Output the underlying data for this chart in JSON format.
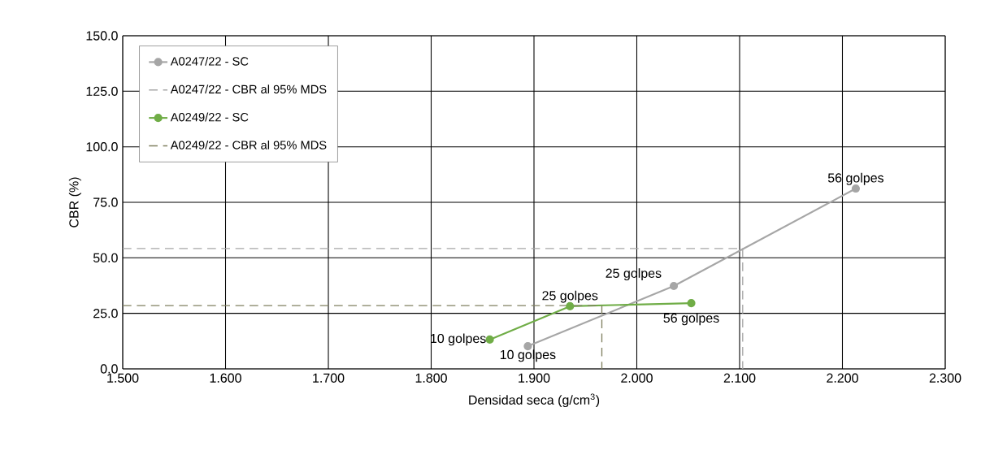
{
  "chart_data": {
    "type": "line",
    "xlabel": "Densidad seca (g/cm$^{3}$)",
    "ylabel": "CBR (%)",
    "xlim": [
      1.5,
      2.3
    ],
    "ylim": [
      0,
      150
    ],
    "xticks": [
      {
        "value": 1.5,
        "label": "1.500"
      },
      {
        "value": 1.6,
        "label": "1.600"
      },
      {
        "value": 1.7,
        "label": "1.700"
      },
      {
        "value": 1.8,
        "label": "1.800"
      },
      {
        "value": 1.9,
        "label": "1.900"
      },
      {
        "value": 2.0,
        "label": "2.000"
      },
      {
        "value": 2.1,
        "label": "2.100"
      },
      {
        "value": 2.2,
        "label": "2.200"
      },
      {
        "value": 2.3,
        "label": "2.300"
      }
    ],
    "yticks": [
      {
        "value": 0,
        "label": "0.0"
      },
      {
        "value": 25,
        "label": "25.0"
      },
      {
        "value": 50,
        "label": "50.0"
      },
      {
        "value": 75,
        "label": "75.0"
      },
      {
        "value": 100,
        "label": "100.0"
      },
      {
        "value": 125,
        "label": "125.0"
      },
      {
        "value": 150,
        "label": "150.0"
      }
    ],
    "grid": true,
    "legend": "top left",
    "series": [
      {
        "name": "A0247/22 - SC",
        "color": "#a6a6a6",
        "marker": "circle",
        "line_style": "solid",
        "x": [
          1.894,
          2.036,
          2.213
        ],
        "values": [
          10.2,
          37.3,
          81.2
        ]
      },
      {
        "name": "A0247/22 - CBR al 95% MDS",
        "color": "#a6a6a6",
        "marker": "none",
        "line_style": "dashed",
        "x": [
          1.5,
          2.103,
          2.103
        ],
        "values": [
          54.2,
          54.2,
          0
        ]
      },
      {
        "name": "A0249/22 - SC",
        "color": "#70ad47",
        "marker": "circle",
        "line_style": "solid",
        "x": [
          1.857,
          1.935,
          2.053
        ],
        "values": [
          13.2,
          28.2,
          29.6
        ]
      },
      {
        "name": "A0249/22 - CBR al 95% MDS",
        "color": "#808060",
        "marker": "none",
        "line_style": "dashed",
        "x": [
          1.5,
          1.966,
          1.966
        ],
        "values": [
          28.5,
          28.5,
          0
        ]
      }
    ],
    "annotations": [
      {
        "text": "10 golpes",
        "x": 1.894,
        "y": 10.2
      },
      {
        "text": "25 golpes",
        "x": 2.036,
        "y": 37.3
      },
      {
        "text": "56 golpes",
        "x": 2.213,
        "y": 81.2
      },
      {
        "text": "10 golpes",
        "x": 1.857,
        "y": 13.2
      },
      {
        "text": "25 golpes",
        "x": 1.935,
        "y": 28.2
      },
      {
        "text": "56 golpes",
        "x": 2.053,
        "y": 29.6
      }
    ]
  }
}
